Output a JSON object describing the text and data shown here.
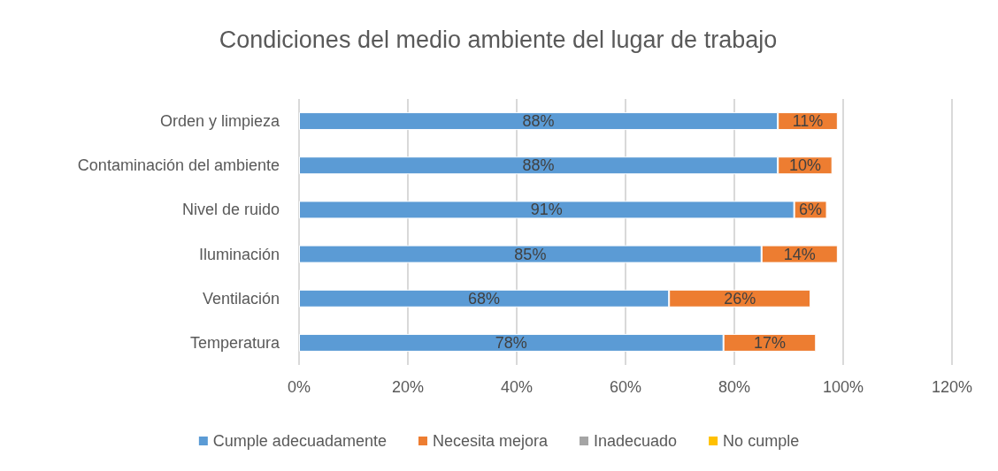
{
  "chart_data": {
    "type": "bar",
    "orientation": "horizontal",
    "stacked": true,
    "title": "Condiciones del medio ambiente del lugar de trabajo",
    "categories": [
      "Orden y limpieza",
      "Contaminación del ambiente",
      "Nivel de ruido",
      "Iluminación",
      "Ventilación",
      "Temperatura"
    ],
    "series": [
      {
        "name": "Cumple adecuadamente",
        "color": "#5b9bd5",
        "values": [
          88,
          88,
          91,
          85,
          68,
          78
        ],
        "value_labels": [
          "88%",
          "88%",
          "91%",
          "85%",
          "68%",
          "78%"
        ]
      },
      {
        "name": "Necesita mejora",
        "color": "#ed7d31",
        "values": [
          11,
          10,
          6,
          14,
          26,
          17
        ],
        "value_labels": [
          "11%",
          "10%",
          "6%",
          "14%",
          "26%",
          "17%"
        ]
      },
      {
        "name": "Inadecuado",
        "color": "#a5a5a5",
        "values": [
          null,
          null,
          null,
          null,
          null,
          null
        ]
      },
      {
        "name": "No cumple",
        "color": "#ffc000",
        "values": [
          null,
          null,
          null,
          null,
          null,
          null
        ]
      }
    ],
    "xlim": [
      0,
      120
    ],
    "xticks": [
      {
        "value": 0,
        "label": "0%"
      },
      {
        "value": 20,
        "label": "20%"
      },
      {
        "value": 40,
        "label": "40%"
      },
      {
        "value": 60,
        "label": "60%"
      },
      {
        "value": 80,
        "label": "80%"
      },
      {
        "value": 100,
        "label": "100%"
      },
      {
        "value": 120,
        "label": "120%"
      }
    ],
    "grid": "x",
    "legend": "bottom"
  }
}
